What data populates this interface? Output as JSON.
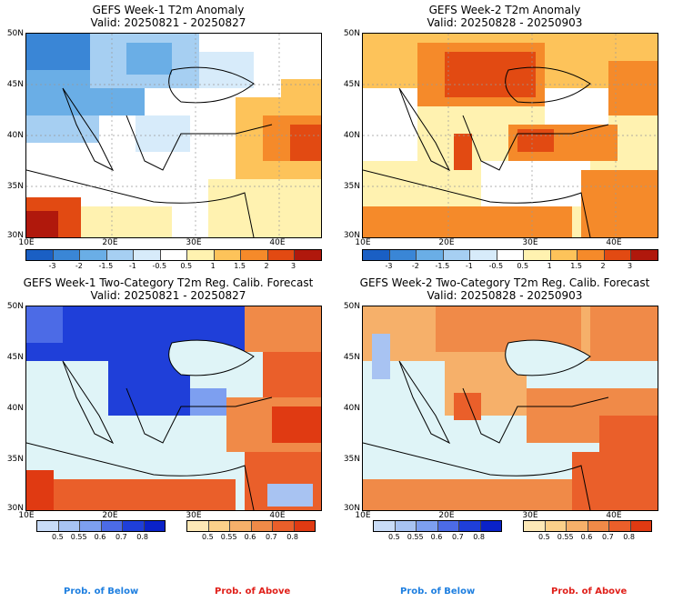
{
  "panels": [
    {
      "title": "GEFS Week-1 T2m Anomaly",
      "valid": "Valid: 20250821 - 20250827"
    },
    {
      "title": "GEFS Week-2 T2m Anomaly",
      "valid": "Valid: 20250828 - 20250903"
    },
    {
      "title": "GEFS Week-1 Two-Category T2m Reg. Calib. Forecast",
      "valid": "Valid: 20250821 - 20250827"
    },
    {
      "title": "GEFS Week-2 Two-Category T2m Reg. Calib. Forecast",
      "valid": "Valid: 20250828 - 20250903"
    }
  ],
  "axes": {
    "lat_labels": [
      "50N",
      "45N",
      "40N",
      "35N",
      "30N"
    ],
    "lon_labels": [
      "10E",
      "20E",
      "30E",
      "40E"
    ]
  },
  "anomaly_colorbar": {
    "labels": [
      "-3",
      "-2",
      "-1.5",
      "-1",
      "-0.5",
      "0.5",
      "1",
      "1.5",
      "2",
      "3"
    ],
    "colors": [
      "#1a5fc4",
      "#3a86d6",
      "#6aaee6",
      "#a6cff2",
      "#d7ebfa",
      "#ffffff",
      "#fff2b0",
      "#fdc35a",
      "#f58a2a",
      "#e24a12",
      "#b0180c"
    ]
  },
  "prob_below_colorbar": {
    "labels": [
      "0.5",
      "0.55",
      "0.6",
      "0.7",
      "0.8"
    ],
    "colors": [
      "#c9dcf7",
      "#a8c3f2",
      "#7d9ff0",
      "#4c6be6",
      "#1f3fd9",
      "#0a22c8"
    ]
  },
  "prob_above_colorbar": {
    "labels": [
      "0.5",
      "0.55",
      "0.6",
      "0.7",
      "0.8"
    ],
    "colors": [
      "#fde8b6",
      "#fbd08a",
      "#f6b06a",
      "#f08a48",
      "#ea5f2a",
      "#e03a12"
    ]
  },
  "footer": {
    "below": "Prob. of Below",
    "above": "Prob. of Above",
    "below_color": "#1e7fe0",
    "above_color": "#e0201a"
  },
  "fills": {
    "sea": "#dff4f7"
  }
}
